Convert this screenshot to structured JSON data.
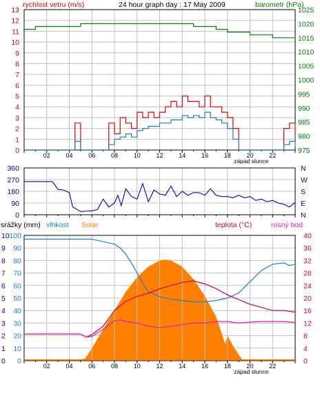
{
  "chart_data": [
    {
      "type": "line",
      "title": "24 hour graph day : 17 May 2009",
      "left_axis_label": "rychlost vetru (m/s)",
      "right_axis_label": "barometr (hPa)",
      "x_ticks": [
        "02",
        "04",
        "06",
        "08",
        "10",
        "12",
        "14",
        "16",
        "18",
        "20",
        "22"
      ],
      "sunset_label": "západ slunce",
      "left_ticks": [
        "0",
        "1",
        "2",
        "3",
        "4",
        "5",
        "6",
        "7",
        "8",
        "9",
        "10",
        "11",
        "12",
        "13"
      ],
      "right_ticks": [
        "975",
        "980",
        "985",
        "990",
        "995",
        "1000",
        "1005",
        "1010",
        "1015",
        "1020",
        "1025"
      ],
      "left_ylim": [
        0,
        13
      ],
      "right_ylim": [
        975,
        1025
      ],
      "hours": [
        0,
        1,
        2,
        3,
        4,
        4.5,
        5,
        6,
        7,
        7.5,
        8,
        8.5,
        9,
        9.5,
        10,
        10.5,
        11,
        11.5,
        12,
        12.5,
        13,
        13.5,
        14,
        14.5,
        15,
        15.5,
        16,
        16.5,
        17,
        17.5,
        18,
        18.5,
        19,
        20,
        21,
        22,
        23,
        23.5,
        24
      ],
      "series": [
        {
          "name": "barometr (hPa)",
          "axis": "right",
          "color": "#008000",
          "x": [
            0,
            1,
            2,
            3,
            4,
            5,
            6,
            7,
            8,
            9,
            10,
            11,
            12,
            13,
            14,
            15,
            16,
            17,
            18,
            19,
            20,
            21,
            22,
            23,
            24
          ],
          "values": [
            1018,
            1019,
            1019,
            1019,
            1019,
            1020,
            1020,
            1020,
            1020,
            1020,
            1020,
            1020,
            1020,
            1020,
            1020,
            1019,
            1019,
            1018,
            1017,
            1017,
            1016,
            1016,
            1015,
            1015,
            1015
          ]
        },
        {
          "name": "wind gust",
          "axis": "left",
          "color": "#e00000",
          "values": [
            0,
            0,
            0,
            0,
            0,
            2.5,
            0,
            0,
            0,
            2.5,
            1.5,
            3,
            2.5,
            2,
            3.5,
            3,
            3.5,
            3,
            3.5,
            4,
            4.5,
            4,
            5,
            4.5,
            4.5,
            4,
            5,
            4,
            4,
            3.5,
            3,
            2,
            0,
            0,
            0,
            0,
            2,
            2.5,
            1
          ]
        },
        {
          "name": "wind average",
          "axis": "left",
          "color": "#1878c0",
          "values": [
            0,
            0,
            0,
            0,
            0,
            0.8,
            0,
            0,
            0,
            0.5,
            1,
            1.2,
            1.5,
            1.2,
            1.8,
            2,
            2.2,
            2.2,
            2.5,
            2.5,
            2.8,
            2.8,
            3.2,
            3,
            3.2,
            3,
            3.5,
            3,
            2.8,
            2.5,
            2,
            1,
            0,
            0,
            0,
            0,
            0.5,
            0.8,
            0.3
          ]
        }
      ]
    },
    {
      "type": "line",
      "name": "wind direction",
      "left_ticks": [
        "0",
        "90",
        "180",
        "270",
        "360"
      ],
      "right_ticks": [
        "N",
        "E",
        "S",
        "W",
        "N"
      ],
      "ylim": [
        0,
        360
      ],
      "series": [
        {
          "name": "direction",
          "color": "#0000c0",
          "x": [
            0,
            1.5,
            2.5,
            3,
            3.5,
            4,
            4.3,
            5,
            6,
            6.5,
            7,
            7.5,
            8,
            8.3,
            8.6,
            9,
            9.5,
            10,
            10.5,
            11,
            11.5,
            12,
            12.5,
            13,
            13.5,
            14,
            14.5,
            15,
            15.5,
            16,
            16.5,
            17,
            17.5,
            18,
            18.5,
            19,
            19.5,
            20,
            20.5,
            21,
            21.5,
            22,
            22.5,
            23,
            23.5,
            24
          ],
          "values": [
            255,
            255,
            255,
            195,
            190,
            170,
            60,
            25,
            30,
            40,
            120,
            60,
            90,
            150,
            70,
            200,
            140,
            120,
            240,
            100,
            190,
            160,
            150,
            220,
            140,
            180,
            150,
            170,
            170,
            150,
            200,
            150,
            140,
            140,
            130,
            150,
            130,
            140,
            110,
            120,
            100,
            110,
            90,
            80,
            60,
            95
          ]
        }
      ]
    },
    {
      "type": "area",
      "legend": [
        "srážky (mm)",
        "vlhkost",
        "Solar",
        "teplota (°C)",
        "rosný bod"
      ],
      "left_ticks": [
        [
          "0",
          "0"
        ],
        [
          "1",
          "10"
        ],
        [
          "2",
          "20"
        ],
        [
          "3",
          "30"
        ],
        [
          "4",
          "40"
        ],
        [
          "5",
          "50"
        ],
        [
          "6",
          "60"
        ],
        [
          "7",
          "70"
        ],
        [
          "8",
          "80"
        ],
        [
          "9",
          "90"
        ],
        [
          "10",
          "100"
        ]
      ],
      "left_ticks_3": [
        "0",
        "3",
        "6",
        "9",
        "12",
        "15",
        "18",
        "21",
        "24",
        "27",
        "30"
      ],
      "right_ticks": [
        "0",
        "4",
        "8",
        "12",
        "16",
        "20",
        "24",
        "28",
        "32",
        "36",
        "40"
      ],
      "x_ticks": [
        "02",
        "04",
        "06",
        "08",
        "10",
        "12",
        "14",
        "16",
        "18",
        "20",
        "22"
      ],
      "sunset_label": "západ slunce",
      "temp_ylim": [
        0,
        40
      ],
      "humidity_ylim": [
        0,
        100
      ],
      "solar_ylim": [
        0,
        30
      ],
      "series": [
        {
          "name": "Solar",
          "color": "#ff8000",
          "x": [
            0,
            5,
            5.4,
            6,
            7,
            8,
            9,
            10,
            11,
            12,
            12.5,
            13,
            14,
            15,
            16,
            17,
            17.5,
            17.8,
            18,
            18.5,
            19.3,
            24
          ],
          "values": [
            0.3,
            0.3,
            0.5,
            3,
            7.5,
            12,
            16.5,
            20,
            22.5,
            24,
            24.2,
            24,
            22.5,
            19.5,
            15.5,
            10.5,
            6.5,
            4,
            6,
            3.5,
            0.3,
            0.3
          ]
        },
        {
          "name": "vlhkost",
          "color": "#1a80c8",
          "x": [
            0,
            2,
            4,
            6,
            6.5,
            7,
            7.5,
            8,
            8.5,
            9,
            9.5,
            10,
            10.5,
            11,
            12,
            13,
            14,
            15,
            16,
            17,
            18,
            19,
            20,
            21,
            22,
            23,
            23.5,
            24
          ],
          "values": [
            97,
            97,
            97,
            97,
            96,
            95,
            94,
            93,
            90,
            85,
            78,
            70,
            62,
            55,
            51,
            49,
            48,
            47,
            47,
            48,
            50,
            54,
            63,
            72,
            77,
            78,
            76,
            77
          ]
        },
        {
          "name": "teplota (°C)",
          "color": "#d00030",
          "x": [
            0,
            2,
            4,
            5,
            5.5,
            6,
            7,
            8,
            9,
            10,
            11,
            12,
            13,
            14,
            15,
            16,
            17,
            18,
            19,
            20,
            21,
            22,
            23,
            24
          ],
          "values": [
            8.5,
            8.5,
            8.5,
            8.5,
            7.5,
            8.3,
            11,
            16,
            19,
            20.5,
            21.5,
            23,
            24,
            25,
            25.5,
            24.5,
            23,
            21,
            19.5,
            18,
            17,
            16,
            16,
            15.5
          ]
        },
        {
          "name": "rosný bod",
          "color": "#e020b0",
          "x": [
            0,
            2,
            4,
            5,
            5.5,
            6,
            7,
            8,
            8.5,
            9,
            10,
            11,
            12,
            13,
            14,
            15,
            16,
            17,
            18,
            19,
            20,
            21,
            22,
            23,
            24
          ],
          "values": [
            8.5,
            8.5,
            8.5,
            8.5,
            7.5,
            7.7,
            10,
            12.8,
            13,
            12.5,
            12,
            11,
            10.5,
            11,
            11.5,
            12,
            12,
            12.5,
            12.5,
            12,
            12.3,
            12.5,
            12.5,
            12.5,
            12.2
          ]
        },
        {
          "name": "srážky (mm)",
          "color": "#ff8000",
          "x": [
            0,
            24
          ],
          "values": [
            0,
            0
          ]
        }
      ]
    }
  ],
  "colors": {
    "grid": "#c0c0c0",
    "frame": "#000000",
    "wind_gust": "#e00000",
    "wind_avg": "#1878c0",
    "pressure": "#008000",
    "direction": "#0000c0",
    "solar": "#ff8000",
    "humidity": "#1a80c8",
    "temperature": "#d00030",
    "dewpoint": "#e020b0"
  }
}
